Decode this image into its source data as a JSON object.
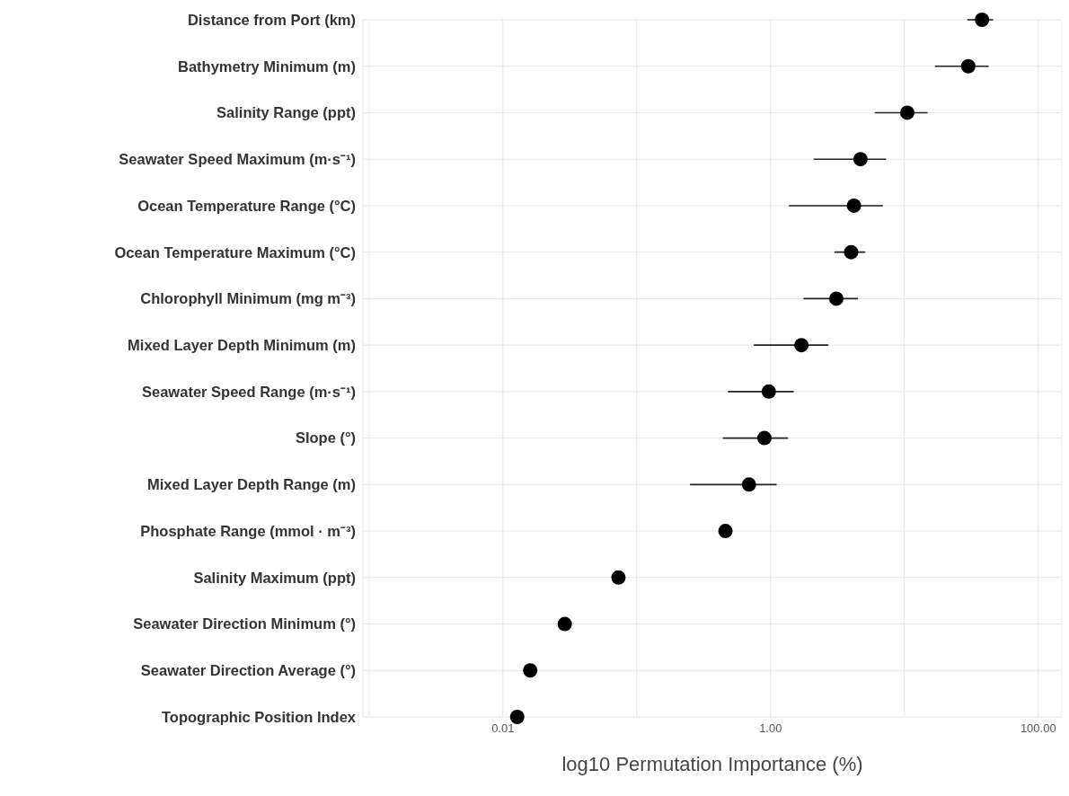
{
  "chart_data": {
    "type": "scatter",
    "orientation": "horizontal",
    "xlabel": "log10 Permutation Importance (%)",
    "categories": [
      "Distance from Port (km)",
      "Bathymetry Minimum (m)",
      "Salinity Range (ppt)",
      "Seawater Speed Maximum (m·s⁻¹)",
      "Ocean Temperature Range (°C)",
      "Ocean Temperature Maximum (°C)",
      "Chlorophyll Minimum (mg m⁻³)",
      "Mixed Layer Depth Minimum (m)",
      "Seawater Speed Range (m·s⁻¹)",
      "Slope (°)",
      "Mixed Layer Depth Range (m)",
      "Phosphate Range (mmol · m⁻³)",
      "Salinity Maximum (ppt)",
      "Seawater Direction Minimum (°)",
      "Seawater Direction Average (°)",
      "Topographic Position Index"
    ],
    "values": [
      38,
      30,
      10.5,
      4.7,
      4.2,
      4.0,
      3.1,
      1.7,
      0.97,
      0.9,
      0.69,
      0.46,
      0.073,
      0.029,
      0.016,
      0.0128
    ],
    "errors": [
      [
        29.5,
        46
      ],
      [
        16.9,
        42.6
      ],
      [
        6.0,
        14.9
      ],
      [
        2.1,
        7.3
      ],
      [
        1.37,
        6.9
      ],
      [
        3.0,
        5.1
      ],
      [
        1.76,
        4.5
      ],
      [
        0.75,
        2.7
      ],
      [
        0.48,
        1.49
      ],
      [
        0.44,
        1.35
      ],
      [
        0.25,
        1.11
      ],
      null,
      null,
      null,
      null,
      null
    ],
    "color": "#000000",
    "marker": "circle",
    "log": "x",
    "grid": true,
    "xlim": [
      0.0009,
      150
    ],
    "xticks": [
      {
        "value": 0.001,
        "label": null
      },
      {
        "value": 0.01,
        "label": "0.01"
      },
      {
        "value": 0.1,
        "label": null
      },
      {
        "value": 1,
        "label": "1.00"
      },
      {
        "value": 10,
        "label": null
      },
      {
        "value": 100,
        "label": "100.00"
      }
    ]
  }
}
